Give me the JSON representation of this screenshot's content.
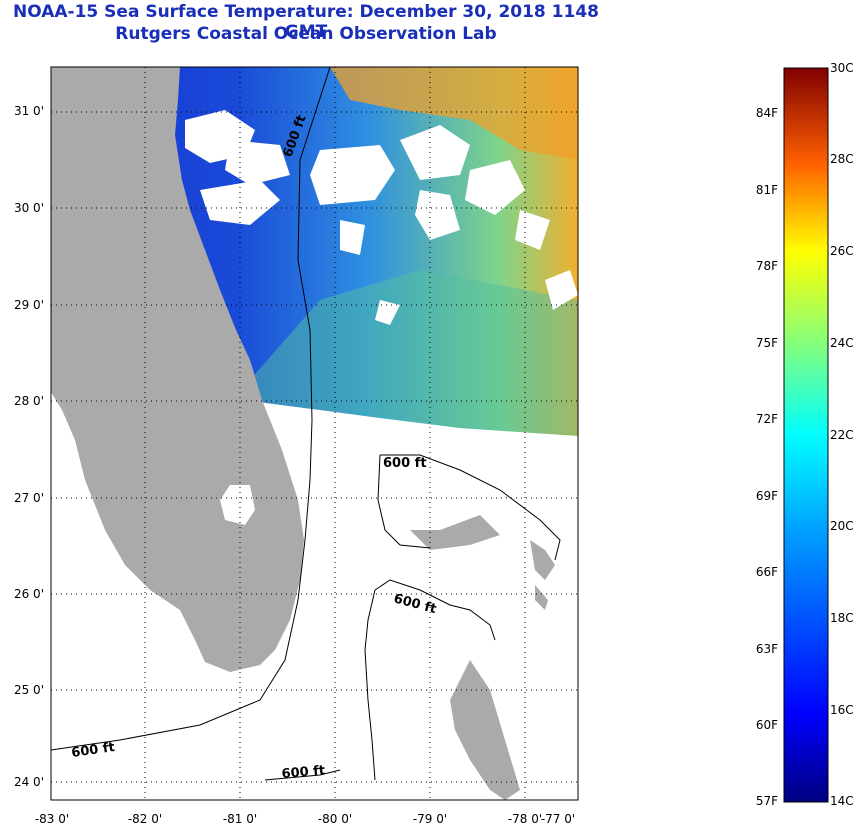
{
  "header": {
    "title_line1": "NOAA-15 Sea Surface Temperature:  December 30, 2018 1148 GMT",
    "title_line2": "Rutgers Coastal Ocean Observation Lab"
  },
  "map": {
    "y_ticks": [
      "31 0'",
      "30 0'",
      "29 0'",
      "28 0'",
      "27 0'",
      "26 0'",
      "25 0'",
      "24 0'"
    ],
    "x_ticks": [
      "-83 0'",
      "-82 0'",
      "-81 0'",
      "-80 0'",
      "-79 0'",
      "-78 0'",
      "-77 0'"
    ],
    "contour_labels": [
      "600 ft",
      "600 ft",
      "600 ft",
      "600 ft",
      "600 ft"
    ],
    "colors": {
      "land": "#aaaaaa",
      "cloud": "#ffffff",
      "grid": "#000000"
    }
  },
  "colorbar": {
    "celsius_labels": [
      "30C",
      "28C",
      "26C",
      "24C",
      "22C",
      "20C",
      "18C",
      "16C",
      "14C"
    ],
    "fahrenheit_labels": [
      "84F",
      "81F",
      "78F",
      "75F",
      "72F",
      "69F",
      "66F",
      "63F",
      "60F",
      "57F"
    ],
    "stops": [
      "#000080",
      "#0000ff",
      "#0080ff",
      "#00ffff",
      "#80ff80",
      "#ffff00",
      "#ff8000",
      "#ff0000",
      "#800000"
    ]
  }
}
